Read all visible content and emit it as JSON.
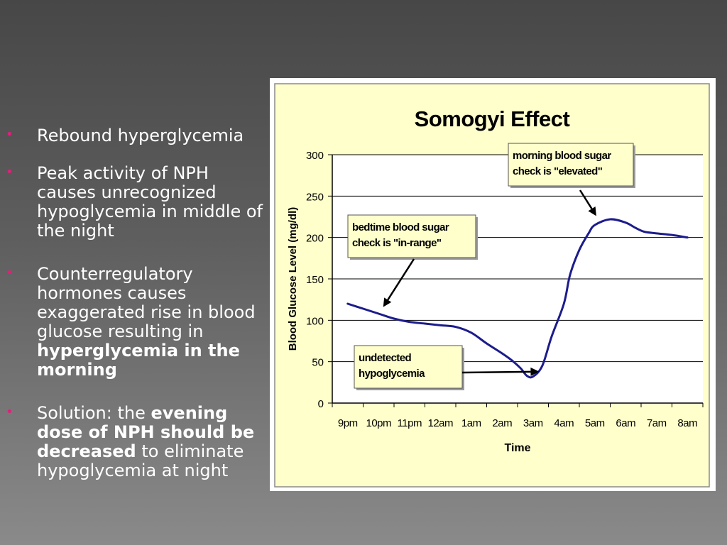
{
  "bullets": [
    {
      "segments": [
        {
          "text": "Rebound hyperglycemia",
          "bold": false
        }
      ]
    },
    {
      "segments": [
        {
          "text": "Peak activity of NPH causes unrecognized hypoglycemia in middle of the night",
          "bold": false
        }
      ]
    },
    {
      "segments": [
        {
          "text": "Counterregulatory hormones causes exaggerated rise in blood glucose resulting in ",
          "bold": false
        },
        {
          "text": "hyperglycemia in the morning",
          "bold": true
        }
      ]
    },
    {
      "segments": [
        {
          "text": "Solution: the ",
          "bold": false
        },
        {
          "text": "evening dose of NPH should be decreased",
          "bold": true
        },
        {
          "text": " to eliminate hypoglycemia at night",
          "bold": false
        }
      ]
    }
  ],
  "colors": {
    "bullet": "#e0207a",
    "chart_bg": "#ffffcc",
    "plot_bg": "#ffffff",
    "line": "#1c1c8c",
    "callout_bg": "#ffffcc"
  },
  "chart_data": {
    "type": "line",
    "title": "Somogyi Effect",
    "xlabel": "Time",
    "ylabel": "Blood Glucose Level (mg/dl)",
    "categories": [
      "9pm",
      "10pm",
      "11pm",
      "12am",
      "1am",
      "2am",
      "3am",
      "4am",
      "5am",
      "6am",
      "7am",
      "8am"
    ],
    "ylim": [
      0,
      300
    ],
    "yticks": [
      0,
      50,
      100,
      150,
      200,
      250,
      300
    ],
    "grid": true,
    "series": [
      {
        "x": [
          0,
          0.5,
          1,
          1.5,
          2,
          2.5,
          3,
          3.5,
          4,
          4.5,
          5,
          5.3,
          5.6,
          5.8,
          6,
          6.3,
          6.6,
          7,
          7.2,
          7.5,
          7.8,
          8,
          8.5,
          9,
          9.3,
          9.6,
          10,
          10.5,
          11
        ],
        "y": [
          120,
          114,
          108,
          102,
          98,
          96,
          94,
          92,
          85,
          72,
          60,
          52,
          42,
          33,
          32,
          45,
          80,
          120,
          155,
          185,
          205,
          215,
          222,
          218,
          212,
          207,
          205,
          203,
          200
        ]
      }
    ],
    "annotations": [
      {
        "text": [
          "morning blood sugar",
          "check is \"elevated\""
        ],
        "target": {
          "x": 8.05,
          "y": 226
        }
      },
      {
        "text": [
          "bedtime blood sugar",
          "check is \"in-range\""
        ],
        "target": {
          "x": 1.15,
          "y": 116
        }
      },
      {
        "text": [
          "undetected",
          "hypoglycemia"
        ],
        "target": {
          "x": 6.2,
          "y": 38
        }
      }
    ]
  }
}
